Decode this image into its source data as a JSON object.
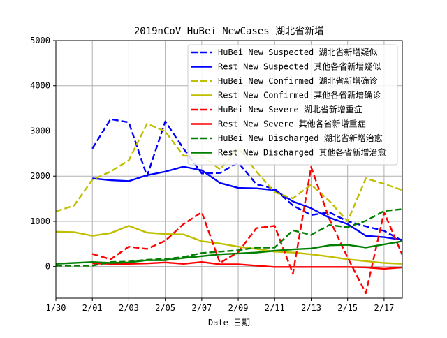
{
  "chart_data": {
    "type": "line",
    "title": "2019nCoV HuBei NewCases 湖北省新增",
    "xlabel": "Date 日期",
    "ylabel": "",
    "x": [
      "1/30",
      "1/31",
      "2/01",
      "2/02",
      "2/03",
      "2/04",
      "2/05",
      "2/06",
      "2/07",
      "2/08",
      "2/09",
      "2/10",
      "2/11",
      "2/12",
      "2/13",
      "2/14",
      "2/15",
      "2/16",
      "2/17",
      "2/18"
    ],
    "x_tick_labels": [
      "1/30",
      "2/01",
      "2/03",
      "2/05",
      "2/07",
      "2/09",
      "2/11",
      "2/13",
      "2/15",
      "2/17"
    ],
    "y_tick_labels": [
      "0",
      "1000",
      "2000",
      "3000",
      "4000",
      "5000"
    ],
    "ylim": [
      -700,
      5000
    ],
    "grid": true,
    "legend_position": "upper right",
    "series": [
      {
        "name": "HuBei New Suspected 湖北省新增疑似",
        "color": "#0000ff",
        "dash": "dashed",
        "values": [
          null,
          null,
          2610,
          3260,
          3190,
          2000,
          3210,
          2610,
          2060,
          2070,
          2300,
          1820,
          1720,
          1350,
          1140,
          1200,
          1000,
          890,
          790,
          570
        ]
      },
      {
        "name": "Rest New Suspected 其他各省新增疑似",
        "color": "#0000ff",
        "dash": "solid",
        "values": [
          null,
          null,
          1950,
          1910,
          1890,
          2020,
          2100,
          2210,
          2130,
          1850,
          1740,
          1730,
          1690,
          1440,
          1290,
          1080,
          940,
          680,
          650,
          590
        ]
      },
      {
        "name": "HuBei New Confirmed 湖北省新增确诊",
        "color": "#bfbf00",
        "dash": "dashed",
        "values": [
          1220,
          1350,
          1920,
          2100,
          2350,
          3160,
          2990,
          2450,
          2450,
          2150,
          2620,
          2100,
          1640,
          1510,
          1810,
          1450,
          1000,
          1950,
          1830,
          1690
        ]
      },
      {
        "name": "Rest New Confirmed 其他各省新增确诊",
        "color": "#bfbf00",
        "dash": "solid",
        "values": [
          770,
          760,
          680,
          740,
          900,
          750,
          720,
          710,
          560,
          510,
          440,
          390,
          330,
          310,
          270,
          220,
          160,
          120,
          80,
          60
        ]
      },
      {
        "name": "HuBei New Severe 湖北省新增重症",
        "color": "#ff0000",
        "dash": "dashed",
        "values": [
          null,
          null,
          280,
          160,
          440,
          390,
          570,
          940,
          1200,
          80,
          320,
          850,
          900,
          -160,
          2200,
          1050,
          200,
          -590,
          1200,
          260
        ]
      },
      {
        "name": "Rest New Severe 其他各省新增重症",
        "color": "#ff0000",
        "dash": "solid",
        "values": [
          null,
          null,
          70,
          60,
          60,
          70,
          90,
          60,
          100,
          50,
          50,
          20,
          -10,
          -10,
          -10,
          -10,
          -10,
          -20,
          -50,
          -20
        ]
      },
      {
        "name": "HuBei New Discharged 湖北省新增治愈",
        "color": "#008000",
        "dash": "dashed",
        "values": [
          20,
          20,
          20,
          100,
          110,
          150,
          170,
          210,
          300,
          330,
          360,
          420,
          420,
          800,
          700,
          920,
          870,
          1010,
          1230,
          1270
        ]
      },
      {
        "name": "Rest New Discharged 其他各省新增治愈",
        "color": "#008000",
        "dash": "solid",
        "values": [
          60,
          80,
          100,
          80,
          90,
          140,
          140,
          190,
          230,
          270,
          290,
          310,
          350,
          380,
          400,
          470,
          480,
          420,
          490,
          560
        ]
      }
    ]
  }
}
